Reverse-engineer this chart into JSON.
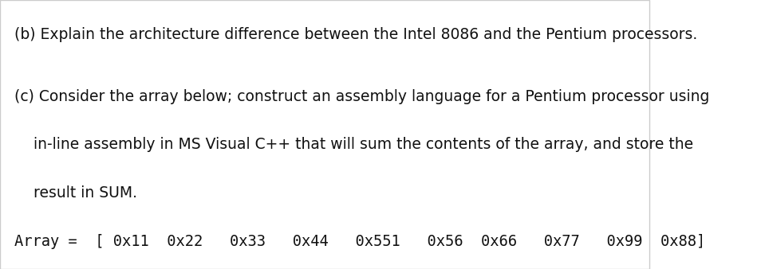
{
  "bg_color": "#ffffff",
  "border_color": "#cccccc",
  "line_b": "(b) Explain the architecture difference between the Intel 8086 and the Pentium processors.",
  "line_c1": "(c) Consider the array below; construct an assembly language for a Pentium processor using",
  "line_c2": "    in-line assembly in MS Visual C++ that will sum the contents of the array, and store the",
  "line_c3": "    result in SUM.",
  "line_arr": "Array =  [ 0x11  0x22   0x33   0x44   0x551   0x56  0x66   0x77   0x99  0x88]",
  "font_size": 13.5,
  "font_family": "DejaVu Sans",
  "mono_family": "DejaVu Sans Mono",
  "text_color": "#111111"
}
